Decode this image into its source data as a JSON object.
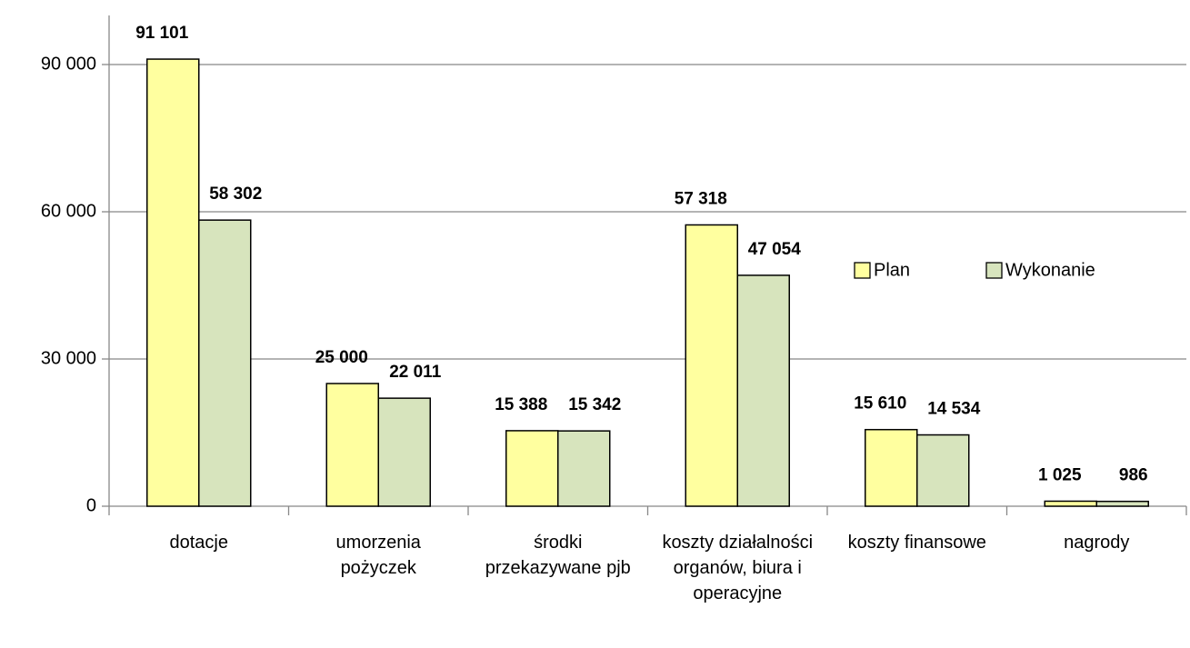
{
  "chart_data": {
    "type": "bar",
    "categories": [
      "dotacje",
      "umorzenia pożyczek",
      "środki przekazywane pjb",
      "koszty działalności organów, biura i operacyjne",
      "koszty finansowe",
      "nagrody"
    ],
    "series": [
      {
        "name": "Plan",
        "color": "#ffff9f",
        "values": [
          91101,
          25000,
          15388,
          57318,
          15610,
          1025
        ],
        "value_labels": [
          "91 101",
          "25 000",
          "15 388",
          "57 318",
          "15 610",
          "1 025"
        ]
      },
      {
        "name": "Wykonanie",
        "color": "#d7e4bd",
        "values": [
          58302,
          22011,
          15342,
          47054,
          14534,
          986
        ],
        "value_labels": [
          "58 302",
          "22 011",
          "15 342",
          "47 054",
          "14 534",
          "986"
        ]
      }
    ],
    "ylim": [
      0,
      100000
    ],
    "yticks": [
      0,
      {
        "value": 30000,
        "label": "30 000"
      },
      {
        "value": 60000,
        "label": "60 000"
      },
      {
        "value": 90000,
        "label": "90 000"
      }
    ],
    "grid": true
  }
}
